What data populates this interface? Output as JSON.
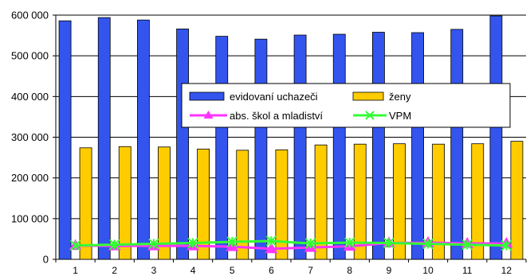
{
  "chart_data": {
    "type": "bar",
    "categories": [
      "1",
      "2",
      "3",
      "4",
      "5",
      "6",
      "7",
      "8",
      "9",
      "10",
      "11",
      "12"
    ],
    "ylim": [
      0,
      600000
    ],
    "yticks": [
      0,
      100000,
      200000,
      300000,
      400000,
      500000,
      600000
    ],
    "ytick_labels": [
      "0",
      "100 000",
      "200 000",
      "300 000",
      "400 000",
      "500 000",
      "600 000"
    ],
    "grid": true,
    "legend_position": "center",
    "series": [
      {
        "name": "evidovaní uchazeči",
        "kind": "bar",
        "color": "#3355ee",
        "values": [
          586000,
          594000,
          588000,
          566000,
          548000,
          541000,
          551000,
          553000,
          558000,
          557000,
          565000,
          598000
        ]
      },
      {
        "name": "ženy",
        "kind": "bar",
        "color": "#ffcc00",
        "values": [
          274000,
          277000,
          276000,
          271000,
          268000,
          269000,
          281000,
          283000,
          284000,
          283000,
          284000,
          290000
        ]
      },
      {
        "name": "abs. škol a mladiství",
        "kind": "line",
        "color": "#ff33ff",
        "marker": "triangle",
        "values": [
          34000,
          33000,
          33000,
          33000,
          31000,
          26000,
          29000,
          32000,
          40000,
          41000,
          39000,
          39000
        ]
      },
      {
        "name": "VPM",
        "kind": "line",
        "color": "#33ff33",
        "marker": "star",
        "values": [
          34000,
          36000,
          38000,
          40000,
          43000,
          45000,
          39000,
          41000,
          40000,
          38000,
          36000,
          34000
        ]
      }
    ]
  }
}
